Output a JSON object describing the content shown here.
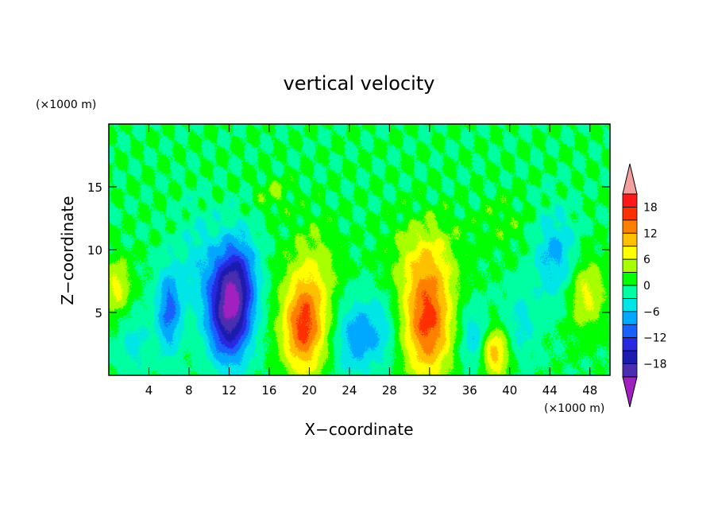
{
  "chart_data": {
    "type": "heatmap",
    "title": "vertical velocity",
    "xlabel": "X−coordinate",
    "ylabel": "Z−coordinate",
    "x_unit": "(×1000 m)",
    "y_unit": "(×1000 m)",
    "xlim": [
      0,
      50
    ],
    "ylim": [
      0,
      20
    ],
    "x_ticks": [
      4,
      8,
      12,
      16,
      20,
      24,
      28,
      32,
      36,
      40,
      44,
      48
    ],
    "y_ticks": [
      5,
      10,
      15
    ],
    "x_tick_labels": [
      "4",
      "8",
      "12",
      "16",
      "20",
      "24",
      "28",
      "32",
      "36",
      "40",
      "44",
      "48"
    ],
    "y_tick_labels": [
      "5",
      "10",
      "15"
    ],
    "features": [
      {
        "x": 12.0,
        "z": 5.0,
        "value": -19,
        "sx": 1.5,
        "sz": 2.8
      },
      {
        "x": 12.9,
        "z": 8.0,
        "value": -9,
        "sx": 1.4,
        "sz": 2.5
      },
      {
        "x": 6.0,
        "z": 5.2,
        "value": -10,
        "sx": 0.9,
        "sz": 2.4
      },
      {
        "x": 19.4,
        "z": 3.7,
        "value": 15,
        "sx": 1.5,
        "sz": 2.6
      },
      {
        "x": 20.4,
        "z": 8.0,
        "value": 5,
        "sx": 1.8,
        "sz": 2.8
      },
      {
        "x": 31.8,
        "z": 4.3,
        "value": 16,
        "sx": 1.7,
        "sz": 3.2
      },
      {
        "x": 31.5,
        "z": 9.5,
        "value": 5,
        "sx": 2.4,
        "sz": 2.2
      },
      {
        "x": 38.5,
        "z": 1.8,
        "value": 11,
        "sx": 1.0,
        "sz": 1.4
      },
      {
        "x": 0.8,
        "z": 7.0,
        "value": 7,
        "sx": 1.0,
        "sz": 1.6
      },
      {
        "x": 47.6,
        "z": 6.5,
        "value": 7,
        "sx": 1.3,
        "sz": 2.0
      },
      {
        "x": 44.5,
        "z": 9.5,
        "value": -7,
        "sx": 1.5,
        "sz": 2.5
      },
      {
        "x": 24.5,
        "z": 3.0,
        "value": -7,
        "sx": 1.3,
        "sz": 2.2
      },
      {
        "x": 27.0,
        "z": 3.5,
        "value": -5,
        "sx": 1.2,
        "sz": 2.0
      },
      {
        "x": 36.5,
        "z": 3.0,
        "value": -6,
        "sx": 1.0,
        "sz": 1.8
      },
      {
        "x": 2.5,
        "z": 2.5,
        "value": -4,
        "sx": 1.2,
        "sz": 1.8
      },
      {
        "x": 9.0,
        "z": 9.0,
        "value": -4,
        "sx": 1.5,
        "sz": 3.0
      },
      {
        "x": 41.0,
        "z": 4.0,
        "value": -4,
        "sx": 1.2,
        "sz": 2.0
      },
      {
        "x": 16.5,
        "z": 14.5,
        "value": 3,
        "sx": 1.2,
        "sz": 1.0
      },
      {
        "x": 39.5,
        "z": 12.0,
        "value": 2,
        "sx": 2.0,
        "sz": 1.5
      }
    ],
    "colorbar": {
      "levels": [
        -21,
        -18,
        -15,
        -12,
        -9,
        -6,
        -3,
        0,
        3,
        6,
        9,
        12,
        15,
        18,
        21
      ],
      "tick_labels": [
        "18",
        "12",
        "6",
        "0",
        "−6",
        "−12",
        "−18"
      ],
      "colors": [
        "#a020c0",
        "#4b2db0",
        "#1b1bb0",
        "#2828e0",
        "#1860ff",
        "#00a8ff",
        "#00e6e6",
        "#00ffa0",
        "#00ff00",
        "#a8ff00",
        "#ffff00",
        "#ffc000",
        "#ff8000",
        "#ff3000",
        "#ff1818",
        "#f4a0a0"
      ],
      "extend": "both"
    }
  }
}
